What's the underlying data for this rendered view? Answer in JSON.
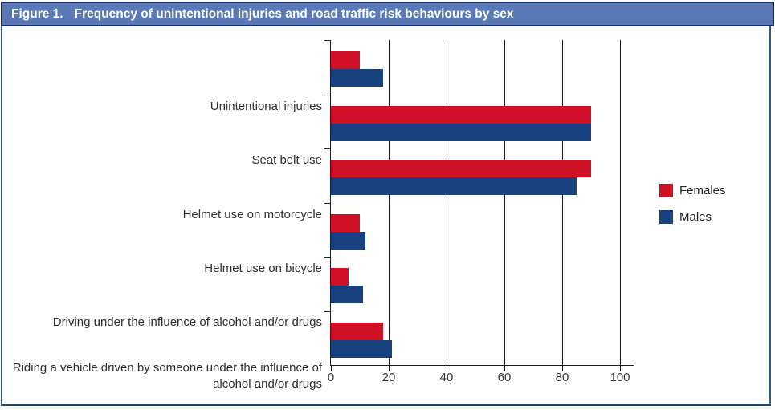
{
  "header": {
    "figure_label": "Figure 1.",
    "title": "Frequency of unintentional injuries and road traffic risk behaviours by sex"
  },
  "chart_data": {
    "type": "bar",
    "orientation": "horizontal",
    "title": "Figure 1. Frequency of unintentional injuries and road traffic risk behaviours by sex",
    "categories": [
      "Unintentional injuries",
      "Seat belt use",
      "Helmet use on motorcycle",
      "Helmet use on bicycle",
      "Driving under the influence of alcohol and/or drugs",
      "Riding a vehicle driven by someone under the influence of alcohol and/or drugs"
    ],
    "series": [
      {
        "name": "Females",
        "color": "#d01026",
        "values": [
          10,
          90,
          90,
          10,
          6,
          18
        ]
      },
      {
        "name": "Males",
        "color": "#16407e",
        "values": [
          18,
          90,
          85,
          12,
          11,
          21
        ]
      }
    ],
    "xlim": [
      0,
      100
    ],
    "xticks": [
      0,
      20,
      40,
      60,
      80,
      100
    ],
    "xlabel": "",
    "ylabel": "",
    "grid": "vertical",
    "legend_position": "right"
  },
  "colors": {
    "header_bg": "#5b79b6",
    "header_border": "#1b2c55",
    "outer_border_side": "#2d5c84",
    "outer_border_bottom": "#174a6e",
    "females": "#d01026",
    "males": "#16407e",
    "axis": "#1a1a1a",
    "label_text": "#2e2e2e"
  }
}
